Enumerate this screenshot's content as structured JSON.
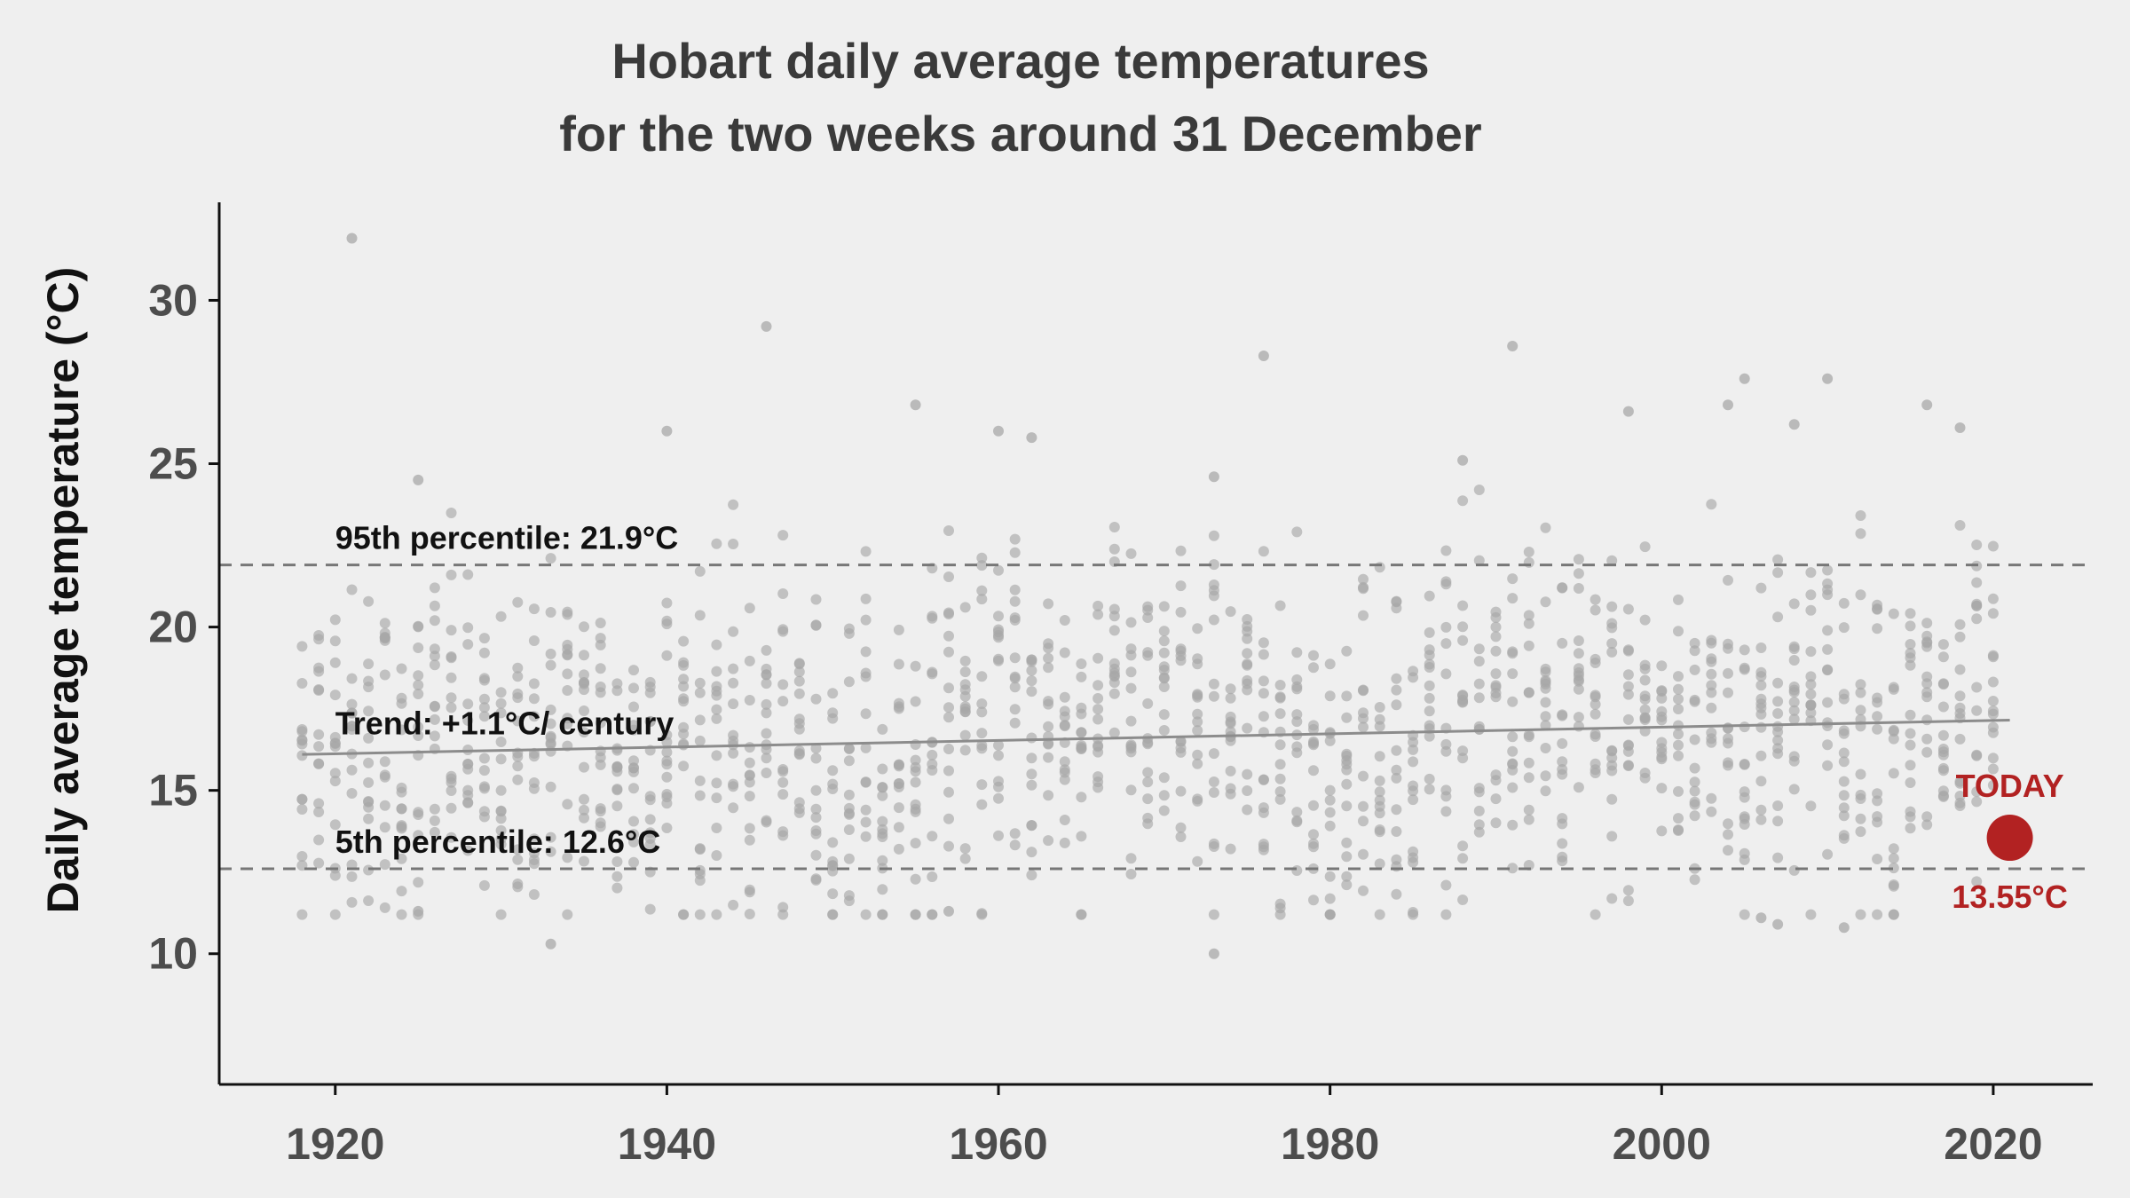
{
  "chart_data": {
    "type": "scatter",
    "title_lines": [
      "Hobart daily average temperatures",
      "for the two weeks around 31 December"
    ],
    "xlabel": "",
    "ylabel": "Daily average temperature (°C)",
    "xlim": [
      1913,
      2026
    ],
    "ylim": [
      6,
      33
    ],
    "xticks": [
      1920,
      1940,
      1960,
      1980,
      2000,
      2020
    ],
    "yticks": [
      10,
      15,
      20,
      25,
      30
    ],
    "grid": false,
    "year_range": [
      1918,
      2020
    ],
    "points_per_year": 14,
    "outliers": [
      {
        "x": 1921,
        "y": 31.9
      },
      {
        "x": 1946,
        "y": 29.2
      },
      {
        "x": 1976,
        "y": 28.3
      },
      {
        "x": 1991,
        "y": 28.6
      },
      {
        "x": 2005,
        "y": 27.6
      },
      {
        "x": 2010,
        "y": 27.6
      },
      {
        "x": 1955,
        "y": 26.8
      },
      {
        "x": 2016,
        "y": 26.8
      },
      {
        "x": 2004,
        "y": 26.8
      },
      {
        "x": 1998,
        "y": 26.6
      },
      {
        "x": 1940,
        "y": 26.0
      },
      {
        "x": 1960,
        "y": 26.0
      },
      {
        "x": 1962,
        "y": 25.8
      },
      {
        "x": 2018,
        "y": 26.1
      },
      {
        "x": 2008,
        "y": 26.2
      },
      {
        "x": 1988,
        "y": 25.1
      },
      {
        "x": 1973,
        "y": 24.6
      },
      {
        "x": 1925,
        "y": 24.5
      },
      {
        "x": 1933,
        "y": 10.3
      },
      {
        "x": 1973,
        "y": 10.0
      },
      {
        "x": 2011,
        "y": 10.8
      },
      {
        "x": 2007,
        "y": 10.9
      },
      {
        "x": 2006,
        "y": 11.1
      },
      {
        "x": 1957,
        "y": 11.3
      },
      {
        "x": 1925,
        "y": 11.3
      }
    ],
    "reference_lines": [
      {
        "label": "95th percentile:  21.9°C",
        "y": 21.9
      },
      {
        "label": "5th percentile:  12.6°C",
        "y": 12.6
      }
    ],
    "trend": {
      "label": "Trend: +1.1°C/ century",
      "x": [
        1918,
        2021
      ],
      "y": [
        16.1,
        17.15
      ]
    },
    "today": {
      "label": "TODAY",
      "value_label": "13.55°C",
      "x": 2021,
      "y": 13.55
    },
    "colors": {
      "points": "#a8a8a8",
      "trend": "#8c8c8c",
      "reference": "#777777",
      "today": "#b22222",
      "axis": "#111111"
    }
  }
}
